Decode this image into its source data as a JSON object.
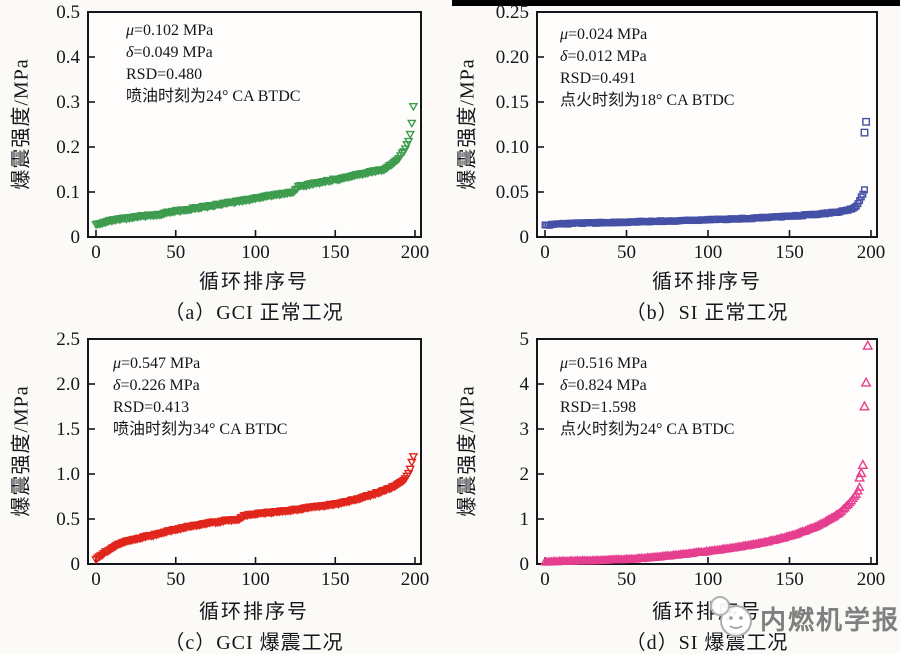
{
  "watermark": {
    "text": "内燃机学报",
    "logo_icon": "sketch-mascot-chat-logo"
  },
  "style": {
    "axis_color": "#15151c",
    "page_background": "#fbfaf7"
  },
  "chart_data": [
    {
      "id": "a",
      "type": "scatter",
      "marker": "triangle-down",
      "color": "#3D9B4D",
      "caption": "（a）GCI 正常工况",
      "xlabel": "循环排序号",
      "ylabel": "爆震强度/MPa",
      "annotation": [
        "μ=0.102 MPa",
        "δ=0.049 MPa",
        "RSD=0.480",
        "喷油时刻为24° CA BTDC"
      ],
      "xlim": [
        0,
        200
      ],
      "ylim": [
        0,
        0.5
      ],
      "xticks": [
        0,
        50,
        100,
        150,
        200
      ],
      "yticks": [
        0,
        0.1,
        0.2,
        0.3,
        0.4,
        0.5
      ],
      "ytick_labels": [
        "0",
        "0.1",
        "0.2",
        "0.3",
        "0.4",
        "0.5"
      ],
      "grid": false,
      "legend": "none",
      "n_points": 200,
      "jitter": 0.003,
      "seed": 3.1,
      "series_anchors": [
        [
          0,
          0.028
        ],
        [
          5,
          0.033
        ],
        [
          12,
          0.038
        ],
        [
          20,
          0.042
        ],
        [
          30,
          0.047
        ],
        [
          40,
          0.05
        ],
        [
          45,
          0.056
        ],
        [
          55,
          0.06
        ],
        [
          65,
          0.066
        ],
        [
          75,
          0.071
        ],
        [
          85,
          0.077
        ],
        [
          95,
          0.083
        ],
        [
          105,
          0.09
        ],
        [
          112,
          0.094
        ],
        [
          120,
          0.098
        ],
        [
          124,
          0.101
        ],
        [
          127,
          0.112
        ],
        [
          135,
          0.118
        ],
        [
          145,
          0.125
        ],
        [
          152,
          0.129
        ],
        [
          160,
          0.135
        ],
        [
          168,
          0.141
        ],
        [
          175,
          0.147
        ],
        [
          180,
          0.15
        ],
        [
          184,
          0.158
        ],
        [
          187,
          0.165
        ],
        [
          189,
          0.172
        ],
        [
          191,
          0.18
        ],
        [
          193,
          0.19
        ],
        [
          194,
          0.197
        ],
        [
          195,
          0.205
        ],
        [
          196,
          0.214
        ],
        [
          197,
          0.228
        ],
        [
          198,
          0.252
        ],
        [
          199,
          0.29
        ]
      ],
      "outliers": []
    },
    {
      "id": "b",
      "type": "scatter",
      "marker": "square",
      "color": "#4551A6",
      "caption": "（b）SI 正常工况",
      "xlabel": "循环排序号",
      "ylabel": "爆震强度/MPa",
      "annotation": [
        "μ=0.024 MPa",
        "δ=0.012 MPa",
        "RSD=0.491",
        "点火时刻为18° CA BTDC"
      ],
      "xlim": [
        0,
        200
      ],
      "ylim": [
        0,
        0.25
      ],
      "xticks": [
        0,
        50,
        100,
        150,
        200
      ],
      "yticks": [
        0,
        0.05,
        0.1,
        0.15,
        0.2,
        0.25
      ],
      "ytick_labels": [
        "0",
        "0.05",
        "0.10",
        "0.15",
        "0.20",
        "0.25"
      ],
      "grid": false,
      "legend": "none",
      "n_points": 197,
      "jitter": 0.0012,
      "seed": 7.7,
      "series_anchors": [
        [
          0,
          0.013
        ],
        [
          10,
          0.0145
        ],
        [
          25,
          0.0155
        ],
        [
          40,
          0.016
        ],
        [
          60,
          0.017
        ],
        [
          80,
          0.018
        ],
        [
          100,
          0.019
        ],
        [
          115,
          0.02
        ],
        [
          130,
          0.021
        ],
        [
          145,
          0.0225
        ],
        [
          158,
          0.024
        ],
        [
          168,
          0.0255
        ],
        [
          176,
          0.027
        ],
        [
          182,
          0.0285
        ],
        [
          186,
          0.03
        ],
        [
          189,
          0.0315
        ],
        [
          191,
          0.034
        ],
        [
          192,
          0.037
        ],
        [
          193,
          0.04
        ],
        [
          194,
          0.044
        ],
        [
          195,
          0.048
        ],
        [
          196,
          0.053
        ]
      ],
      "outliers": [
        [
          196,
          0.116
        ],
        [
          197,
          0.128
        ]
      ]
    },
    {
      "id": "c",
      "type": "scatter",
      "marker": "triangle-down",
      "color": "#E0251B",
      "caption": "（c）GCI 爆震工况",
      "xlabel": "循环排序号",
      "ylabel": "爆震强度/MPa",
      "annotation": [
        "μ=0.547 MPa",
        "δ=0.226 MPa",
        "RSD=0.413",
        "喷油时刻为34° CA BTDC"
      ],
      "xlim": [
        0,
        200
      ],
      "ylim": [
        0,
        2.5
      ],
      "xticks": [
        0,
        50,
        100,
        150,
        200
      ],
      "yticks": [
        0,
        0.5,
        1.0,
        1.5,
        2.0,
        2.5
      ],
      "ytick_labels": [
        "0",
        "0.5",
        "1.0",
        "1.5",
        "2.0",
        "2.5"
      ],
      "grid": false,
      "legend": "none",
      "n_points": 200,
      "jitter": 0.013,
      "seed": 11.3,
      "series_anchors": [
        [
          0,
          0.05
        ],
        [
          2,
          0.08
        ],
        [
          5,
          0.12
        ],
        [
          8,
          0.155
        ],
        [
          12,
          0.2
        ],
        [
          16,
          0.235
        ],
        [
          22,
          0.265
        ],
        [
          30,
          0.3
        ],
        [
          38,
          0.33
        ],
        [
          46,
          0.37
        ],
        [
          54,
          0.4
        ],
        [
          62,
          0.43
        ],
        [
          72,
          0.46
        ],
        [
          82,
          0.485
        ],
        [
          90,
          0.5
        ],
        [
          94,
          0.545
        ],
        [
          104,
          0.565
        ],
        [
          115,
          0.585
        ],
        [
          125,
          0.605
        ],
        [
          135,
          0.63
        ],
        [
          145,
          0.655
        ],
        [
          153,
          0.675
        ],
        [
          162,
          0.715
        ],
        [
          170,
          0.755
        ],
        [
          178,
          0.8
        ],
        [
          184,
          0.84
        ],
        [
          188,
          0.875
        ],
        [
          191,
          0.905
        ],
        [
          193,
          0.935
        ],
        [
          195,
          0.975
        ],
        [
          196,
          1.01
        ],
        [
          197,
          1.06
        ],
        [
          198,
          1.13
        ],
        [
          199,
          1.2
        ]
      ],
      "outliers": []
    },
    {
      "id": "d",
      "type": "scatter",
      "marker": "triangle-up",
      "color": "#E63E8E",
      "caption": "（d）SI 爆震工况",
      "xlabel": "循环排序号",
      "ylabel": "爆震强度/MPa",
      "annotation": [
        "μ=0.516 MPa",
        "δ=0.824 MPa",
        "RSD=1.598",
        "点火时刻为24° CA BTDC"
      ],
      "xlim": [
        0,
        200
      ],
      "ylim": [
        0,
        5
      ],
      "xticks": [
        0,
        50,
        100,
        150,
        200
      ],
      "yticks": [
        0,
        1,
        2,
        3,
        4,
        5
      ],
      "ytick_labels": [
        "0",
        "1",
        "2",
        "3",
        "4",
        "5"
      ],
      "grid": false,
      "legend": "none",
      "n_points": 194,
      "jitter": 0.016,
      "seed": 17.9,
      "series_anchors": [
        [
          0,
          0.05
        ],
        [
          10,
          0.06
        ],
        [
          20,
          0.07
        ],
        [
          30,
          0.08
        ],
        [
          40,
          0.09
        ],
        [
          48,
          0.1
        ],
        [
          55,
          0.115
        ],
        [
          62,
          0.135
        ],
        [
          70,
          0.16
        ],
        [
          78,
          0.19
        ],
        [
          86,
          0.22
        ],
        [
          94,
          0.255
        ],
        [
          102,
          0.29
        ],
        [
          110,
          0.33
        ],
        [
          118,
          0.375
        ],
        [
          126,
          0.42
        ],
        [
          134,
          0.475
        ],
        [
          142,
          0.545
        ],
        [
          150,
          0.62
        ],
        [
          156,
          0.69
        ],
        [
          161,
          0.755
        ],
        [
          166,
          0.83
        ],
        [
          171,
          0.92
        ],
        [
          176,
          1.02
        ],
        [
          180,
          1.12
        ],
        [
          184,
          1.25
        ],
        [
          187,
          1.36
        ],
        [
          189,
          1.45
        ],
        [
          191,
          1.55
        ],
        [
          192,
          1.62
        ],
        [
          193,
          1.7
        ]
      ],
      "outliers": [
        [
          193,
          1.92
        ],
        [
          194,
          2.02
        ],
        [
          195,
          2.2
        ],
        [
          196,
          3.5
        ],
        [
          197,
          4.03
        ],
        [
          198,
          4.85
        ]
      ]
    }
  ]
}
